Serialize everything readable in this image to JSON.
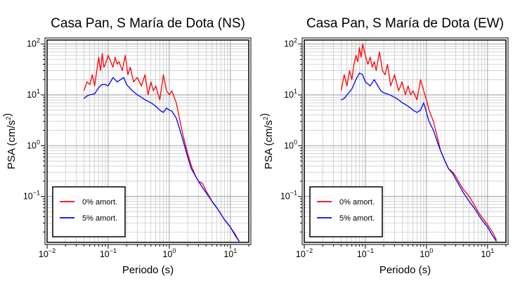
{
  "chart_data": [
    {
      "type": "line",
      "title": "Casa Pan, S María de Dota (NS)",
      "xlabel": "Periodo (s)",
      "ylabel": "PSA (cm/s²)",
      "xscale": "log",
      "yscale": "log",
      "xlim": [
        0.01,
        20
      ],
      "ylim": [
        0.0125,
        120
      ],
      "grid": true,
      "legend_position": "bottom-left",
      "series": [
        {
          "name": "0% amort.",
          "color": "#ff0000",
          "x": [
            0.04,
            0.045,
            0.05,
            0.055,
            0.06,
            0.065,
            0.07,
            0.075,
            0.08,
            0.085,
            0.09,
            0.1,
            0.11,
            0.12,
            0.13,
            0.14,
            0.15,
            0.17,
            0.19,
            0.21,
            0.23,
            0.26,
            0.3,
            0.35,
            0.4,
            0.45,
            0.5,
            0.55,
            0.6,
            0.7,
            0.8,
            0.9,
            1.0,
            1.1,
            1.3,
            1.5,
            1.7,
            2.0,
            2.3,
            2.7,
            3.0,
            3.5,
            4.0,
            5.0,
            6.0,
            7.0,
            8.0,
            10.0,
            12.0,
            14.0
          ],
          "y": [
            12,
            18,
            16,
            25,
            15,
            30,
            55,
            30,
            65,
            35,
            40,
            60,
            45,
            35,
            55,
            40,
            45,
            30,
            60,
            25,
            35,
            18,
            22,
            15,
            25,
            10,
            18,
            12,
            15,
            8,
            25,
            12,
            10,
            12,
            7,
            3,
            1.5,
            0.7,
            0.4,
            0.25,
            0.2,
            0.18,
            0.13,
            0.08,
            0.06,
            0.045,
            0.035,
            0.025,
            0.018,
            0.013
          ]
        },
        {
          "name": "5% amort.",
          "color": "#0000ff",
          "x": [
            0.04,
            0.045,
            0.05,
            0.06,
            0.07,
            0.08,
            0.09,
            0.1,
            0.12,
            0.14,
            0.16,
            0.18,
            0.2,
            0.25,
            0.3,
            0.35,
            0.4,
            0.5,
            0.6,
            0.7,
            0.8,
            0.9,
            1.0,
            1.1,
            1.3,
            1.5,
            1.7,
            2.0,
            2.3,
            2.7,
            3.0,
            3.5,
            4.0,
            5.0,
            6.0,
            7.0,
            8.0,
            10.0,
            12.0,
            14.0
          ],
          "y": [
            8.5,
            9.5,
            10,
            10.5,
            14,
            16,
            16,
            15,
            22,
            18,
            20,
            22,
            16,
            12,
            10,
            9,
            8,
            7,
            6,
            5,
            4.5,
            5.5,
            5,
            4.8,
            3.5,
            2,
            1.2,
            0.6,
            0.35,
            0.25,
            0.2,
            0.15,
            0.12,
            0.08,
            0.06,
            0.045,
            0.035,
            0.025,
            0.017,
            0.013
          ]
        }
      ]
    },
    {
      "type": "line",
      "title": "Casa Pan, S María de Dota (EW)",
      "xlabel": "Periodo (s)",
      "ylabel": "PSA (cm/s²)",
      "xscale": "log",
      "yscale": "log",
      "xlim": [
        0.01,
        20
      ],
      "ylim": [
        0.0125,
        120
      ],
      "grid": true,
      "legend_position": "bottom-left",
      "series": [
        {
          "name": "0% amort.",
          "color": "#ff0000",
          "x": [
            0.04,
            0.045,
            0.05,
            0.055,
            0.06,
            0.065,
            0.07,
            0.075,
            0.08,
            0.085,
            0.09,
            0.1,
            0.11,
            0.12,
            0.13,
            0.14,
            0.15,
            0.17,
            0.19,
            0.21,
            0.23,
            0.26,
            0.3,
            0.35,
            0.4,
            0.45,
            0.5,
            0.55,
            0.6,
            0.7,
            0.8,
            0.9,
            1.0,
            1.1,
            1.3,
            1.5,
            1.7,
            2.0,
            2.3,
            2.7,
            3.0,
            3.5,
            4.0,
            5.0,
            6.0,
            7.0,
            8.0,
            10.0,
            12.0,
            14.0
          ],
          "y": [
            12,
            25,
            15,
            30,
            20,
            40,
            60,
            45,
            85,
            55,
            100,
            60,
            40,
            55,
            35,
            45,
            30,
            70,
            30,
            25,
            40,
            15,
            25,
            12,
            18,
            10,
            15,
            10,
            12,
            8,
            20,
            12,
            8,
            5,
            3,
            1.5,
            0.8,
            0.5,
            0.35,
            0.3,
            0.25,
            0.18,
            0.14,
            0.1,
            0.07,
            0.05,
            0.04,
            0.028,
            0.02,
            0.014
          ]
        },
        {
          "name": "5% amort.",
          "color": "#0000ff",
          "x": [
            0.04,
            0.045,
            0.05,
            0.06,
            0.07,
            0.08,
            0.09,
            0.1,
            0.12,
            0.14,
            0.16,
            0.18,
            0.2,
            0.25,
            0.3,
            0.35,
            0.4,
            0.5,
            0.6,
            0.7,
            0.8,
            0.9,
            1.0,
            1.1,
            1.3,
            1.5,
            1.7,
            2.0,
            2.3,
            2.7,
            3.0,
            3.5,
            4.0,
            5.0,
            6.0,
            7.0,
            8.0,
            10.0,
            12.0,
            14.0
          ],
          "y": [
            8,
            8.5,
            10,
            13,
            20,
            27,
            25,
            18,
            15,
            20,
            15,
            12,
            11,
            10,
            9,
            8,
            7,
            6,
            5,
            4.5,
            5,
            7,
            4.5,
            3,
            2,
            1.2,
            0.8,
            0.5,
            0.35,
            0.28,
            0.22,
            0.16,
            0.12,
            0.08,
            0.06,
            0.045,
            0.035,
            0.025,
            0.017,
            0.013
          ]
        }
      ]
    }
  ]
}
